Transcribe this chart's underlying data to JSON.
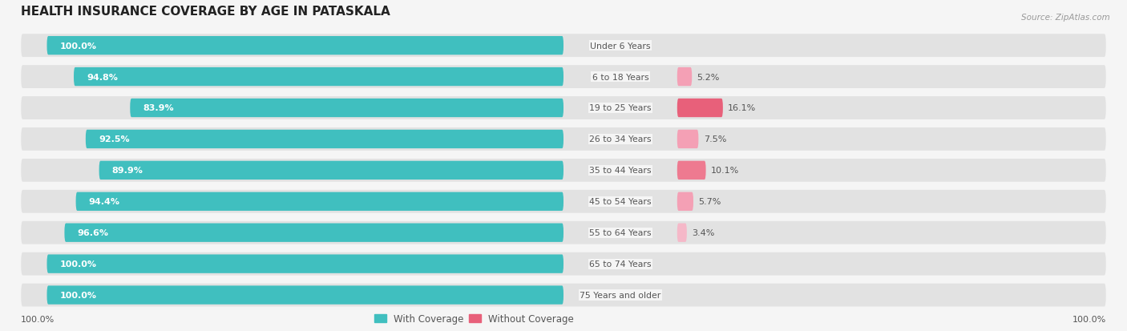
{
  "title": "HEALTH INSURANCE COVERAGE BY AGE IN PATASKALA",
  "source": "Source: ZipAtlas.com",
  "categories": [
    "Under 6 Years",
    "6 to 18 Years",
    "19 to 25 Years",
    "26 to 34 Years",
    "35 to 44 Years",
    "45 to 54 Years",
    "55 to 64 Years",
    "65 to 74 Years",
    "75 Years and older"
  ],
  "with_coverage": [
    100.0,
    94.8,
    83.9,
    92.5,
    89.9,
    94.4,
    96.6,
    100.0,
    100.0
  ],
  "without_coverage": [
    0.0,
    5.2,
    16.1,
    7.5,
    10.1,
    5.7,
    3.4,
    0.0,
    0.0
  ],
  "color_with": "#40bfbf",
  "color_without_high": "#e8607a",
  "color_without_mid": "#ee7a90",
  "color_without_low": "#f4a0b5",
  "color_without_vlow": "#f5b8c8",
  "bg_color": "#f5f5f5",
  "row_bg_color": "#e2e2e2",
  "title_color": "#222222",
  "teal_label_color": "#ffffff",
  "value_label_color": "#555555",
  "source_color": "#999999",
  "legend_label_color": "#555555",
  "bottom_label_color": "#555555",
  "cat_label_bg": "#f5f5f5"
}
